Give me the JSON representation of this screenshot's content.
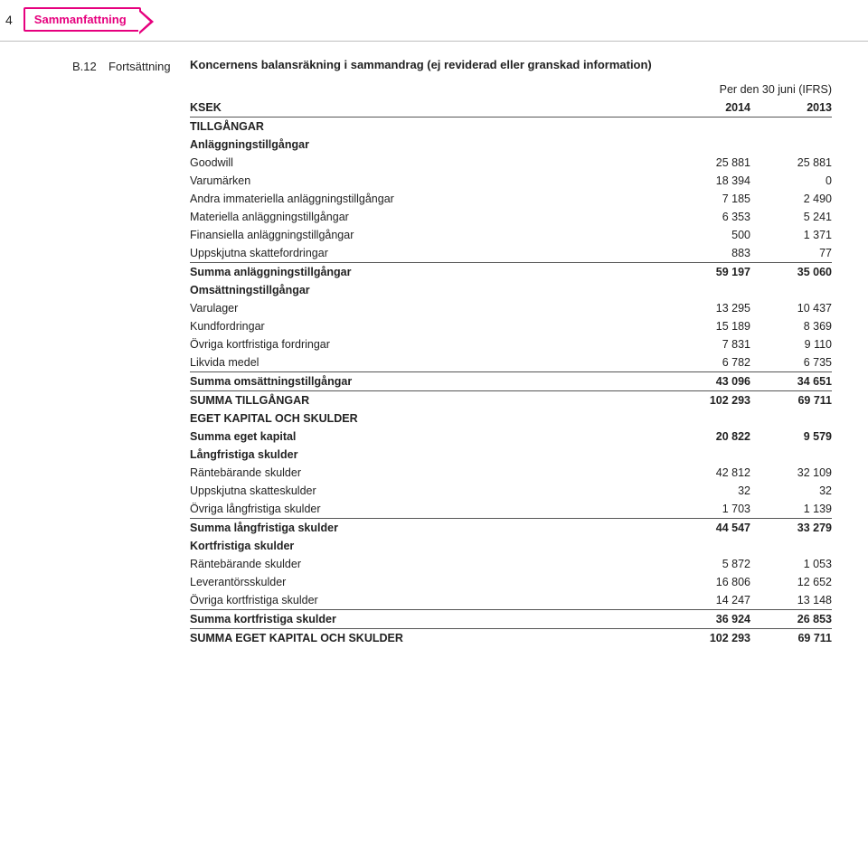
{
  "page_number": "4",
  "tab_label": "Sammanfattning",
  "item_id": "B.12",
  "item_tag": "Fortsättning",
  "section_title": "Koncernens balansräkning i sammandrag (ej reviderad eller granskad information)",
  "period_caption": "Per den 30 juni (IFRS)",
  "ksek_label": "KSEK",
  "year1": "2014",
  "year2": "2013",
  "heading_tillgangar": "TILLGÅNGAR",
  "sub_anlaggning": "Anläggningstillgångar",
  "rows_anlaggning": [
    {
      "label": "Goodwill",
      "v1": "25 881",
      "v2": "25 881"
    },
    {
      "label": "Varumärken",
      "v1": "18 394",
      "v2": "0"
    },
    {
      "label": "Andra immateriella anläggningstillgångar",
      "v1": "7 185",
      "v2": "2 490"
    },
    {
      "label": "Materiella anläggningstillgångar",
      "v1": "6 353",
      "v2": "5 241"
    },
    {
      "label": "Finansiella anläggningstillgångar",
      "v1": "500",
      "v2": "1 371"
    },
    {
      "label": "Uppskjutna skattefordringar",
      "v1": "883",
      "v2": "77"
    }
  ],
  "sum_anlaggning": {
    "label": "Summa anläggningstillgångar",
    "v1": "59 197",
    "v2": "35 060"
  },
  "sub_omsattning": "Omsättningstillgångar",
  "rows_omsattning": [
    {
      "label": "Varulager",
      "v1": "13 295",
      "v2": "10 437"
    },
    {
      "label": "Kundfordringar",
      "v1": "15 189",
      "v2": "8 369"
    },
    {
      "label": "Övriga kortfristiga fordringar",
      "v1": "7 831",
      "v2": "9 110"
    },
    {
      "label": "Likvida medel",
      "v1": "6 782",
      "v2": "6 735"
    }
  ],
  "sum_omsattning": {
    "label": "Summa omsättningstillgångar",
    "v1": "43 096",
    "v2": "34 651"
  },
  "summa_tillgangar": {
    "label": "SUMMA TILLGÅNGAR",
    "v1": "102 293",
    "v2": "69 711"
  },
  "heading_eget": "EGET KAPITAL OCH SKULDER",
  "summa_eget_kapital": {
    "label": "Summa eget kapital",
    "v1": "20 822",
    "v2": "9 579"
  },
  "sub_lang": "Långfristiga skulder",
  "rows_lang": [
    {
      "label": "Räntebärande skulder",
      "v1": "42 812",
      "v2": "32 109"
    },
    {
      "label": "Uppskjutna skatteskulder",
      "v1": "32",
      "v2": "32"
    },
    {
      "label": "Övriga långfristiga skulder",
      "v1": "1 703",
      "v2": "1 139"
    }
  ],
  "sum_lang": {
    "label": "Summa långfristiga skulder",
    "v1": "44 547",
    "v2": "33 279"
  },
  "sub_kort": "Kortfristiga skulder",
  "rows_kort": [
    {
      "label": "Räntebärande skulder",
      "v1": "5 872",
      "v2": "1 053"
    },
    {
      "label": "Leverantörsskulder",
      "v1": "16 806",
      "v2": "12 652"
    },
    {
      "label": "Övriga kortfristiga skulder",
      "v1": "14 247",
      "v2": "13 148"
    }
  ],
  "sum_kort": {
    "label": "Summa kortfristiga skulder",
    "v1": "36 924",
    "v2": "26 853"
  },
  "summa_eget_skulder": {
    "label": "SUMMA EGET KAPITAL OCH SKULDER",
    "v1": "102 293",
    "v2": "69 711"
  }
}
